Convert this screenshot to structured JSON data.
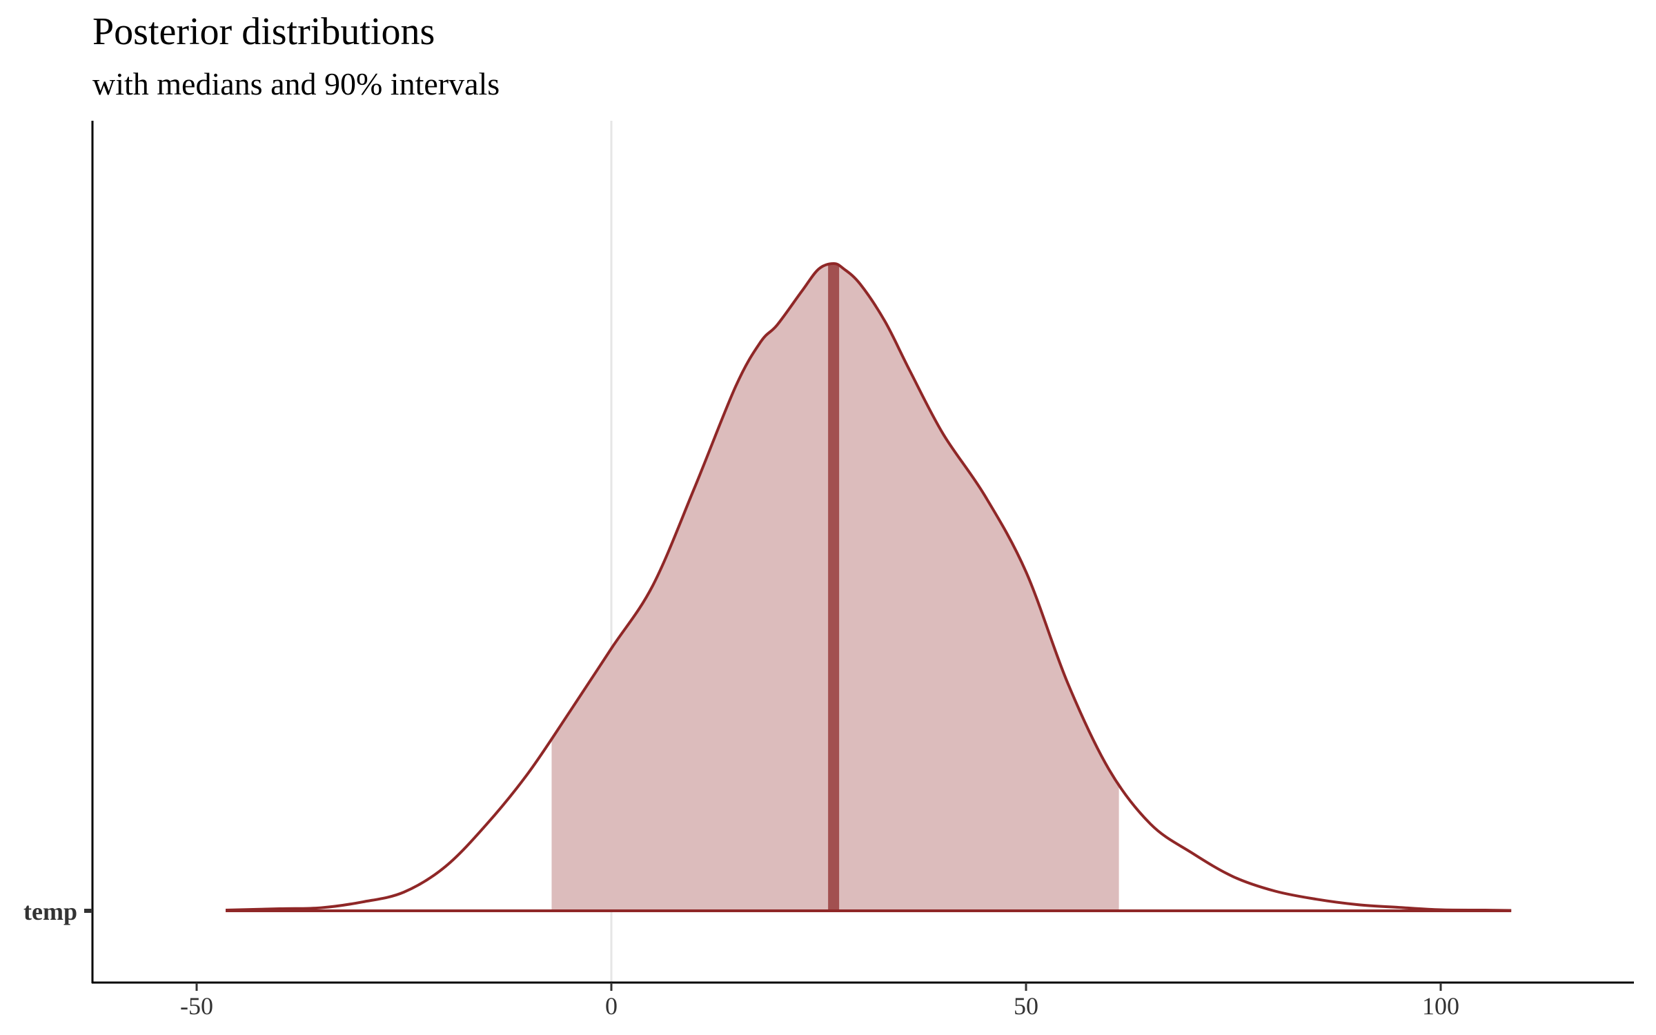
{
  "chart_data": {
    "type": "area",
    "title": "Posterior distributions",
    "subtitle": "with medians and 90% intervals",
    "xlabel": "",
    "ylabel": "",
    "xlim": [
      -62,
      123
    ],
    "xticks": [
      -50,
      0,
      50,
      100
    ],
    "xtick_labels": [
      "-50",
      "0",
      "50",
      "100"
    ],
    "parameters": [
      "temp"
    ],
    "reference_line": 0,
    "grid": false,
    "legend": "none",
    "colors": {
      "line": "#8f2727",
      "interval_fill": "#dcbcbc",
      "median": "#a25050",
      "reference": "#e6e6e6",
      "axis": "#000000"
    },
    "series": [
      {
        "parameter": "temp",
        "median": 26.8,
        "interval_90": [
          -7.2,
          61.2
        ],
        "density": {
          "x": [
            -46.5,
            -40,
            -35,
            -30,
            -25,
            -20,
            -15,
            -10,
            -5,
            0,
            5,
            10,
            15,
            18,
            20,
            23,
            25,
            26.8,
            28,
            30,
            33,
            36,
            40,
            45,
            50,
            55,
            60,
            65,
            70,
            75,
            80,
            85,
            90,
            95,
            100,
            105,
            108.5
          ],
          "y": [
            0.002,
            0.006,
            0.009,
            0.026,
            0.055,
            0.13,
            0.255,
            0.405,
            0.585,
            0.77,
            0.955,
            1.24,
            1.54,
            1.67,
            1.72,
            1.82,
            1.884,
            1.9,
            1.885,
            1.84,
            1.73,
            1.585,
            1.4,
            1.22,
            0.995,
            0.67,
            0.415,
            0.255,
            0.17,
            0.1,
            0.058,
            0.034,
            0.018,
            0.01,
            0.003,
            0.002,
            0.001
          ]
        }
      }
    ]
  }
}
